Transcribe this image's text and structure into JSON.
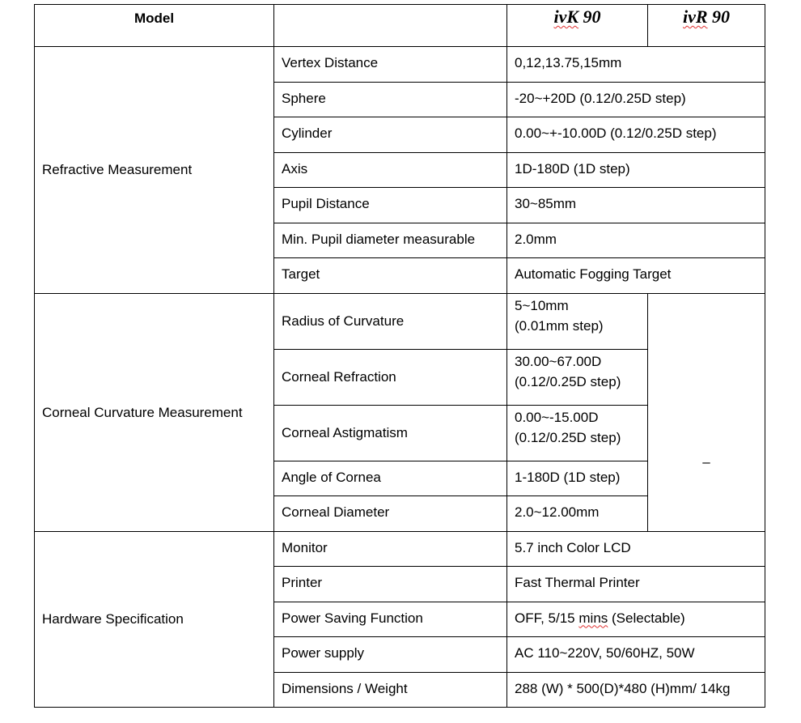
{
  "header": {
    "model_label": "Model",
    "model_a": "ivK 90",
    "model_a_prefix": "ivK",
    "model_a_suffix": " 90",
    "model_b_prefix": "ivR",
    "model_b_suffix": " 90",
    "model_b": "ivR 90"
  },
  "refractive": {
    "group": "Refractive Measurement",
    "rows": [
      {
        "name": "Vertex Distance",
        "value": "0,12,13.75,15mm"
      },
      {
        "name": "Sphere",
        "value": "-20~+20D (0.12/0.25D step)"
      },
      {
        "name": "Cylinder",
        "value": "0.00~+-10.00D (0.12/0.25D step)"
      },
      {
        "name": "Axis",
        "value": "1D-180D (1D step)"
      },
      {
        "name": "Pupil Distance",
        "value": "30~85mm"
      },
      {
        "name": "Min. Pupil diameter measurable",
        "value": "2.0mm"
      },
      {
        "name": "Target",
        "value": "Automatic Fogging Target"
      }
    ]
  },
  "corneal": {
    "group": "Corneal Curvature Measurement",
    "ivr_value": "–",
    "rows": [
      {
        "name": "Radius of Curvature",
        "value_line1": "5~10mm",
        "value_line2": "(0.01mm step)"
      },
      {
        "name": "Corneal Refraction",
        "value_line1": "30.00~67.00D",
        "value_line2": "(0.12/0.25D step)"
      },
      {
        "name": "Corneal Astigmatism",
        "value_line1": "0.00~-15.00D",
        "value_line2": "(0.12/0.25D step)"
      },
      {
        "name": "Angle of Cornea",
        "value_line1": "1-180D (1D step)"
      },
      {
        "name": "Corneal Diameter",
        "value_line1": "2.0~12.00mm"
      }
    ]
  },
  "hardware": {
    "group": "Hardware Specification",
    "rows": [
      {
        "name": "Monitor",
        "value": "5.7 inch Color LCD"
      },
      {
        "name": "Printer",
        "value": "Fast Thermal Printer"
      },
      {
        "name": "Power Saving Function",
        "value": "OFF, 5/15 mins (Selectable)",
        "value_pre": "OFF, 5/15 ",
        "value_sq": "mins",
        "value_post": " (Selectable)"
      },
      {
        "name": "Power supply",
        "value": "AC 110~220V, 50/60HZ, 50W"
      },
      {
        "name": "Dimensions / Weight",
        "value": "288 (W) * 500(D)*480 (H)mm/ 14kg"
      }
    ]
  }
}
